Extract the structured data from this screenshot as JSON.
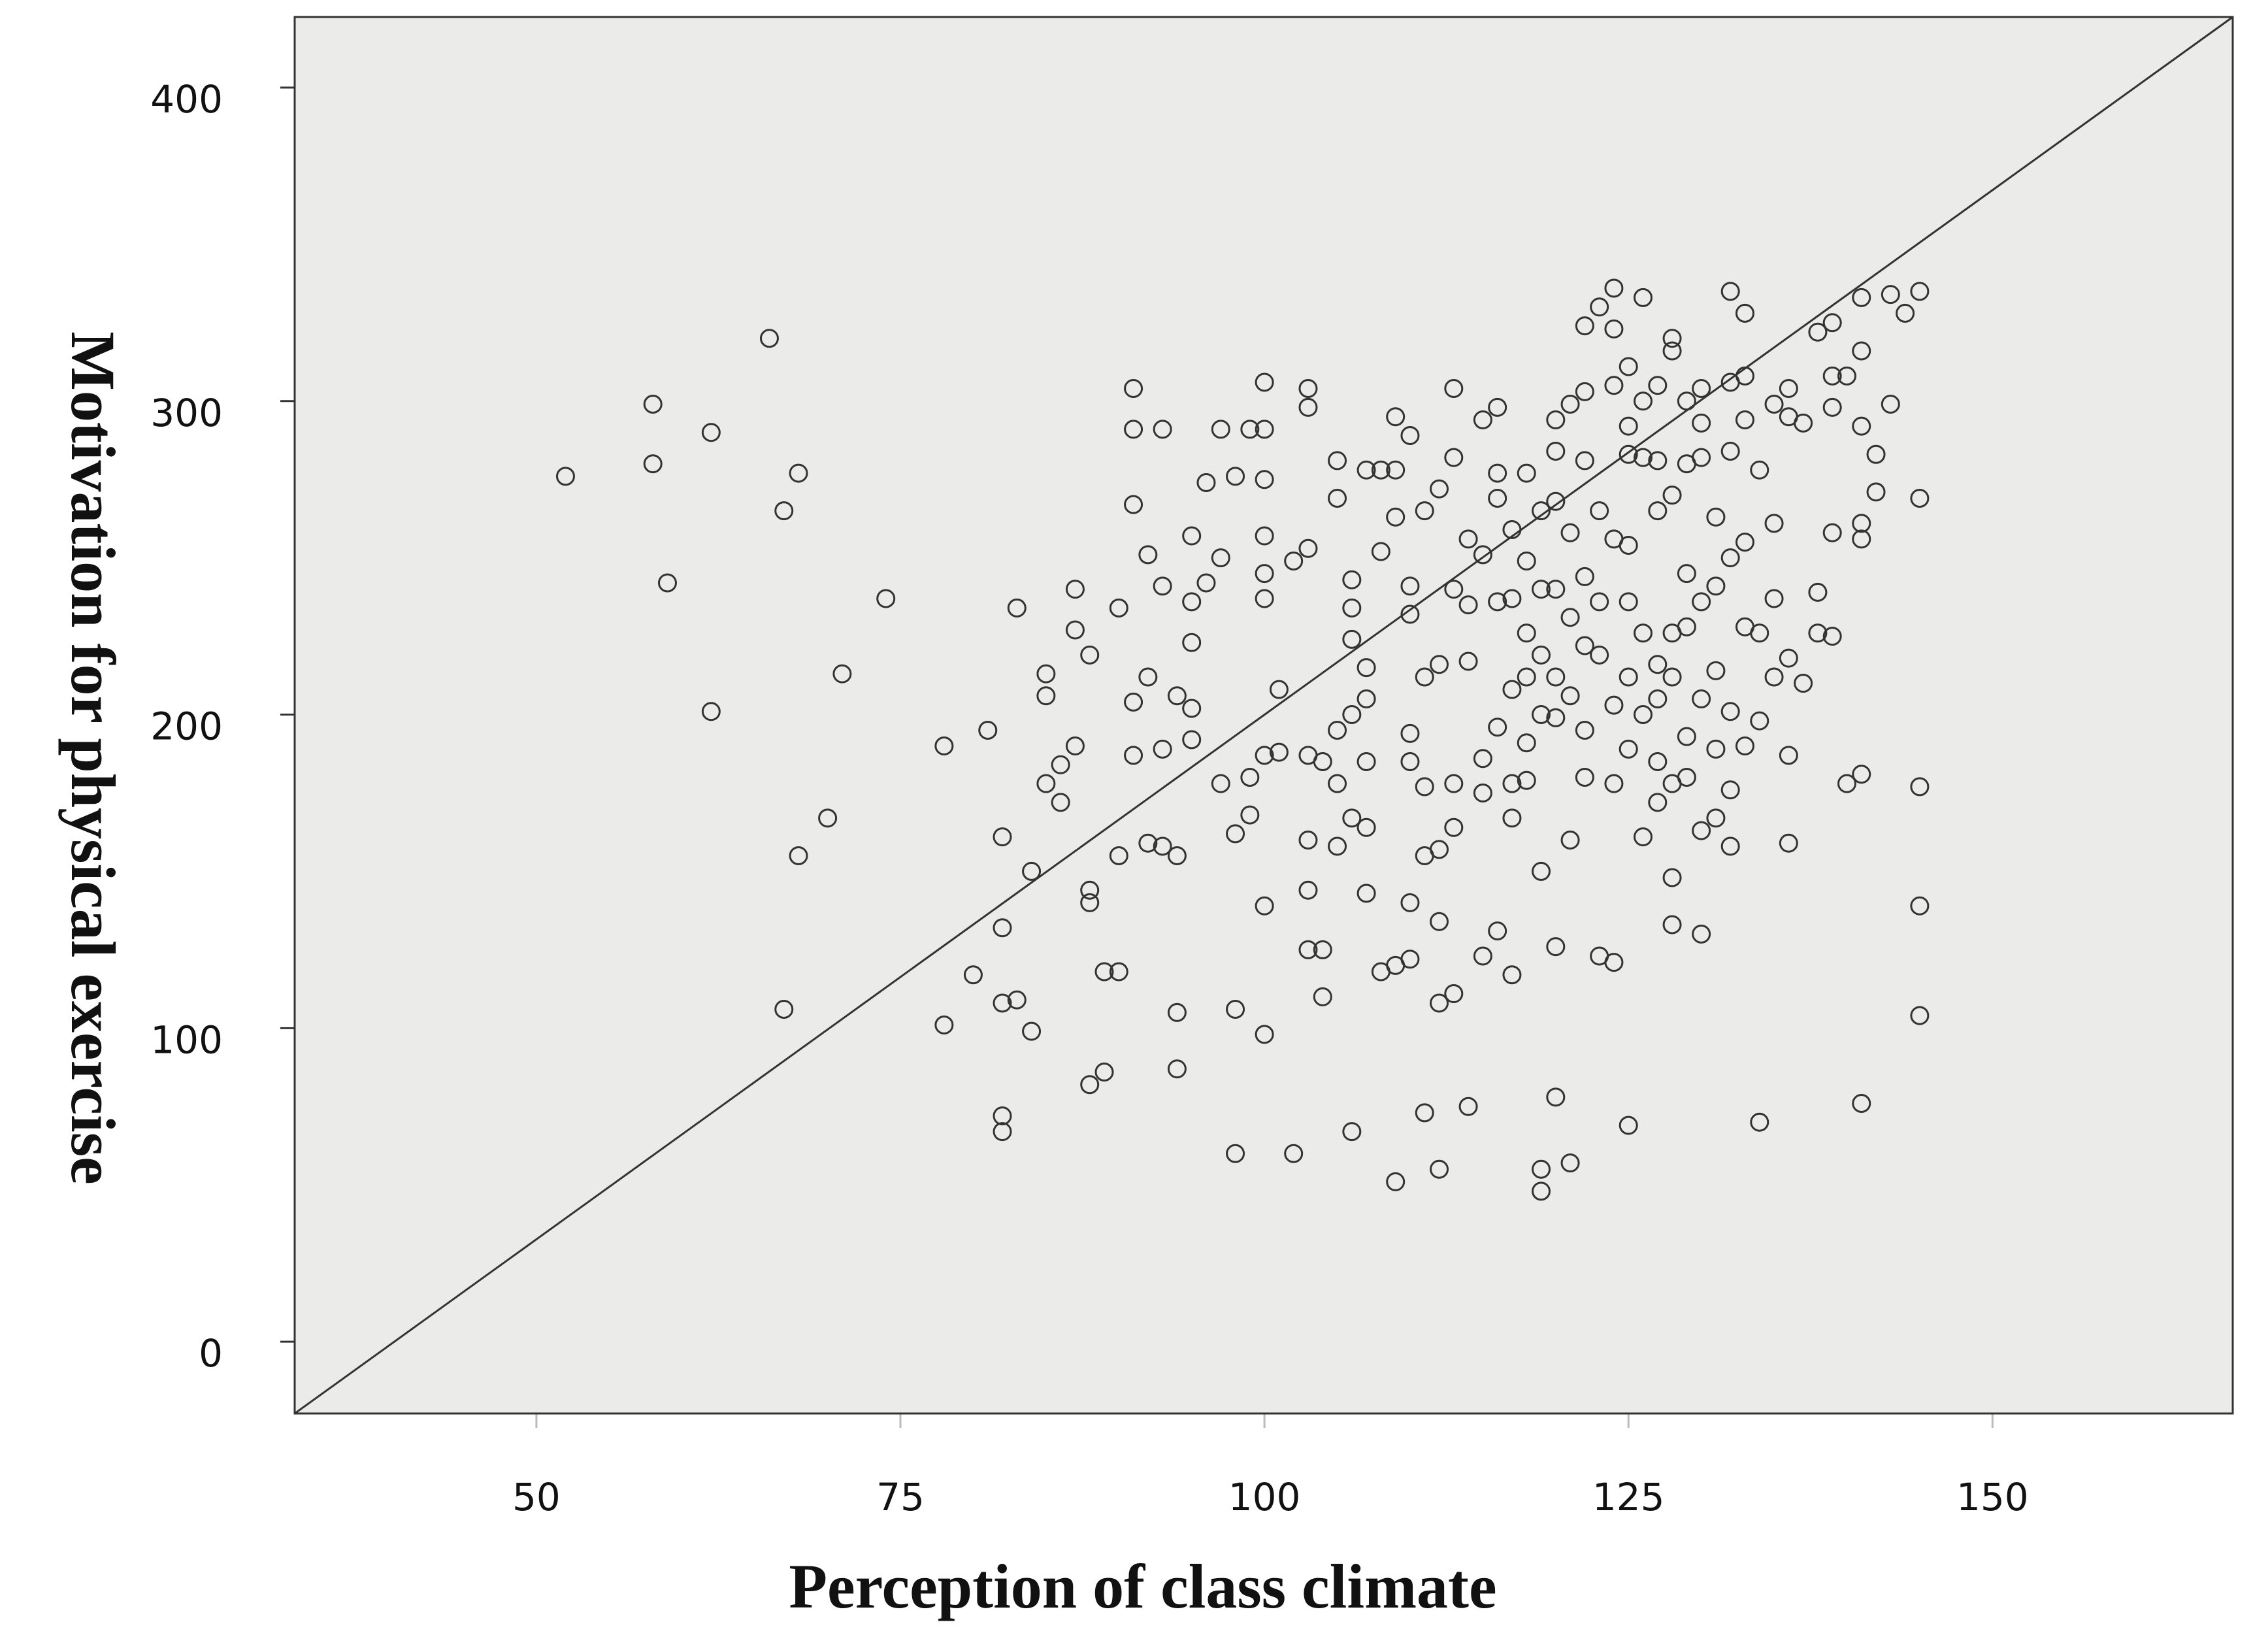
{
  "chart_data": {
    "type": "scatter",
    "x_label": "Perception of class climate",
    "y_label": "Motivation for physical exercise",
    "xlim": [
      33.4,
      166.5
    ],
    "ylim": [
      -22.9,
      422.5
    ],
    "xticks": [
      50,
      75,
      100,
      125,
      150
    ],
    "yticks": [
      0,
      100,
      200,
      300,
      400
    ],
    "marker_color": "#333333",
    "background": "#ebebe9",
    "x": [
      52,
      58,
      58,
      59,
      62,
      62,
      66,
      67,
      68,
      67,
      68,
      70,
      71,
      74,
      78,
      78,
      80,
      81,
      82,
      82,
      82,
      82,
      82,
      83,
      83,
      84,
      84,
      85,
      85,
      85,
      86,
      86,
      87,
      87,
      87,
      88,
      88,
      88,
      88,
      89,
      89,
      90,
      90,
      90,
      91,
      91,
      91,
      91,
      91,
      92,
      92,
      92,
      93,
      93,
      93,
      93,
      94,
      94,
      94,
      94,
      95,
      95,
      95,
      95,
      95,
      96,
      96,
      97,
      97,
      97,
      98,
      98,
      98,
      98,
      99,
      99,
      99,
      100,
      100,
      100,
      100,
      100,
      100,
      100,
      100,
      100,
      101,
      101,
      102,
      102,
      103,
      103,
      103,
      103,
      103,
      103,
      103,
      104,
      104,
      104,
      105,
      105,
      105,
      105,
      105,
      106,
      106,
      106,
      106,
      106,
      106,
      107,
      107,
      107,
      107,
      107,
      107,
      108,
      108,
      108,
      109,
      109,
      109,
      109,
      109,
      110,
      110,
      110,
      110,
      110,
      110,
      110,
      111,
      111,
      111,
      111,
      111,
      112,
      112,
      112,
      112,
      112,
      112,
      113,
      113,
      113,
      113,
      113,
      113,
      114,
      114,
      114,
      114,
      115,
      115,
      115,
      115,
      115,
      116,
      116,
      116,
      116,
      116,
      116,
      117,
      117,
      117,
      117,
      117,
      117,
      118,
      118,
      118,
      118,
      118,
      118,
      119,
      119,
      119,
      119,
      119,
      119,
      119,
      120,
      120,
      120,
      120,
      120,
      120,
      120,
      120,
      121,
      121,
      121,
      121,
      121,
      121,
      122,
      122,
      122,
      122,
      122,
      122,
      122,
      123,
      123,
      123,
      123,
      123,
      124,
      124,
      124,
      124,
      124,
      124,
      124,
      125,
      125,
      125,
      125,
      125,
      125,
      125,
      125,
      126,
      126,
      126,
      126,
      126,
      126,
      127,
      127,
      127,
      127,
      127,
      127,
      127,
      128,
      128,
      128,
      128,
      128,
      128,
      128,
      128,
      129,
      129,
      129,
      129,
      129,
      129,
      130,
      130,
      130,
      130,
      130,
      130,
      130,
      131,
      131,
      131,
      131,
      131,
      132,
      132,
      132,
      132,
      132,
      132,
      132,
      133,
      133,
      133,
      133,
      133,
      133,
      134,
      134,
      134,
      134,
      135,
      135,
      135,
      135,
      136,
      136,
      136,
      136,
      136,
      137,
      137,
      138,
      138,
      138,
      139,
      139,
      139,
      139,
      139,
      140,
      140,
      141,
      141,
      141,
      141,
      141,
      141,
      141,
      142,
      142,
      143,
      143,
      144,
      145,
      145,
      145,
      145,
      145
    ],
    "values": [
      276,
      299,
      280,
      242,
      290,
      201,
      320,
      265,
      277,
      106,
      155,
      167,
      213,
      237,
      190,
      101,
      117,
      195,
      161,
      132,
      108,
      72,
      67,
      234,
      109,
      150,
      99,
      213,
      206,
      178,
      184,
      172,
      240,
      227,
      190,
      219,
      144,
      140,
      82,
      118,
      86,
      234,
      155,
      118,
      304,
      291,
      267,
      204,
      187,
      251,
      212,
      159,
      291,
      241,
      189,
      158,
      206,
      155,
      105,
      87,
      257,
      236,
      223,
      202,
      192,
      274,
      242,
      291,
      250,
      178,
      276,
      162,
      106,
      60,
      291,
      168,
      180,
      306,
      291,
      275,
      257,
      245,
      237,
      187,
      139,
      98,
      208,
      188,
      249,
      60,
      304,
      298,
      253,
      187,
      160,
      144,
      125,
      185,
      125,
      110,
      281,
      269,
      195,
      178,
      158,
      243,
      234,
      224,
      200,
      167,
      67,
      278,
      215,
      205,
      185,
      164,
      143,
      278,
      252,
      118,
      295,
      278,
      263,
      120,
      51,
      289,
      241,
      232,
      194,
      185,
      140,
      122,
      265,
      212,
      177,
      155,
      73,
      272,
      216,
      157,
      134,
      108,
      55,
      304,
      282,
      240,
      178,
      164,
      111,
      256,
      235,
      217,
      75,
      294,
      251,
      186,
      175,
      123,
      298,
      277,
      269,
      236,
      196,
      131,
      259,
      237,
      208,
      178,
      167,
      117,
      277,
      249,
      226,
      212,
      191,
      179,
      265,
      240,
      219,
      200,
      150,
      55,
      48,
      294,
      284,
      268,
      240,
      212,
      199,
      126,
      78,
      299,
      258,
      231,
      206,
      160,
      57,
      324,
      303,
      281,
      244,
      222,
      195,
      180,
      330,
      265,
      236,
      219,
      123,
      336,
      323,
      305,
      256,
      203,
      178,
      121,
      311,
      292,
      283,
      254,
      236,
      212,
      189,
      69,
      333,
      300,
      282,
      226,
      200,
      161,
      305,
      281,
      265,
      216,
      205,
      185,
      172,
      320,
      316,
      270,
      226,
      212,
      178,
      148,
      133,
      300,
      280,
      245,
      228,
      193,
      180,
      304,
      293,
      282,
      236,
      205,
      163,
      130,
      263,
      241,
      214,
      189,
      167,
      335,
      306,
      284,
      250,
      201,
      176,
      158,
      328,
      308,
      294,
      255,
      228,
      190,
      278,
      226,
      198,
      70,
      299,
      261,
      237,
      212,
      304,
      295,
      218,
      187,
      159,
      293,
      210,
      322,
      239,
      226,
      325,
      308,
      298,
      258,
      225,
      308,
      178,
      333,
      316,
      292,
      261,
      256,
      181,
      76,
      283,
      271,
      334,
      299,
      328,
      335,
      269,
      177,
      139,
      104
    ]
  }
}
